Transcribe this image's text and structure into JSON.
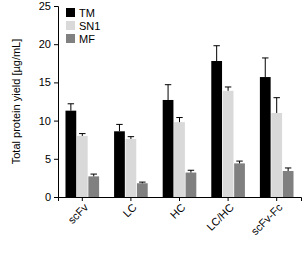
{
  "chart_data": {
    "type": "bar",
    "y_label": "Total protein yield [µg/mL]",
    "categories": [
      "scFv",
      "LC",
      "HC",
      "LC/HC",
      "scFv-Fc"
    ],
    "series": [
      {
        "name": "TM",
        "color": "#000000",
        "values": [
          11.3,
          8.6,
          12.7,
          17.8,
          15.7
        ],
        "errors": [
          0.9,
          0.9,
          2.0,
          2.0,
          2.5
        ]
      },
      {
        "name": "SN1",
        "color": "#d9d9d9",
        "values": [
          8.0,
          7.6,
          9.8,
          13.9,
          11.0
        ],
        "errors": [
          0.3,
          0.3,
          0.6,
          0.5,
          2.0
        ]
      },
      {
        "name": "MF",
        "color": "#808080",
        "values": [
          2.7,
          1.8,
          3.2,
          4.4,
          3.4
        ],
        "errors": [
          0.3,
          0.15,
          0.3,
          0.3,
          0.4
        ]
      }
    ],
    "ylim": [
      0,
      25
    ],
    "yticks": [
      0,
      5,
      10,
      15,
      20,
      25
    ],
    "legend": "top-left",
    "grid": false
  }
}
